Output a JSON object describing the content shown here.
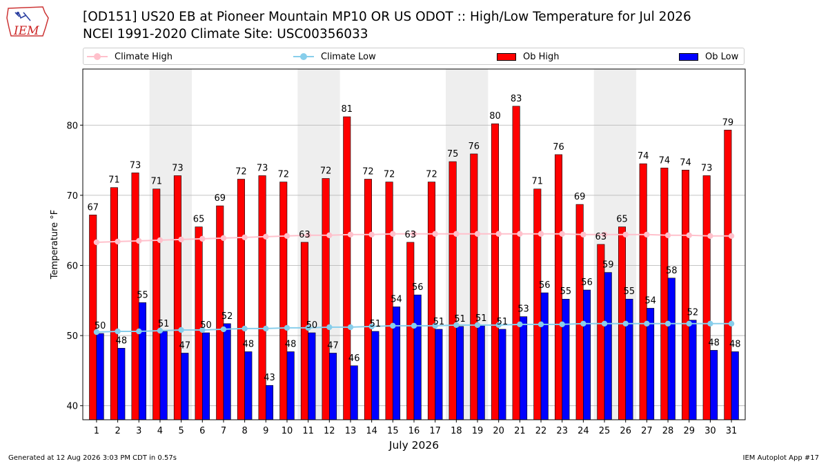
{
  "header": {
    "logo_text": "IEM",
    "title_line1": "[OD151] US20 EB at Pioneer Mountain MP10 OR US ODOT :: High/Low Temperature for Jul 2026",
    "title_line2": "NCEI 1991-2020 Climate Site: USC00356033"
  },
  "legend": {
    "climate_high": "Climate High",
    "climate_low": "Climate Low",
    "ob_high": "Ob High",
    "ob_low": "Ob Low"
  },
  "footer": {
    "generated": "Generated at 12 Aug 2026 3:03 PM CDT in 0.57s",
    "app": "IEM Autoplot App #17"
  },
  "colors": {
    "ob_high": "#ff0000",
    "ob_low": "#0000ff",
    "climate_high": "#ffc0cb",
    "climate_low": "#87ceeb",
    "weekend_shade": "#eeeeee",
    "grid": "#b0b0b0"
  },
  "chart_data": {
    "type": "bar",
    "xlabel": "July 2026",
    "ylabel": "Temperature °F",
    "ylim": [
      38,
      88
    ],
    "yticks": [
      40,
      50,
      60,
      70,
      80
    ],
    "grid": "horizontal",
    "legend_position": "top",
    "categories": [
      "1",
      "2",
      "3",
      "4",
      "5",
      "6",
      "7",
      "8",
      "9",
      "10",
      "11",
      "12",
      "13",
      "14",
      "15",
      "16",
      "17",
      "18",
      "19",
      "20",
      "21",
      "22",
      "23",
      "24",
      "25",
      "26",
      "27",
      "28",
      "29",
      "30",
      "31"
    ],
    "shaded_days": [
      [
        4,
        5
      ],
      [
        11,
        12
      ],
      [
        18,
        19
      ],
      [
        25,
        26
      ]
    ],
    "series": [
      {
        "name": "Ob High",
        "kind": "bar",
        "values": [
          67,
          71,
          73,
          71,
          73,
          65,
          69,
          72,
          73,
          72,
          63,
          72,
          81,
          72,
          72,
          63,
          72,
          75,
          76,
          80,
          83,
          71,
          76,
          69,
          63,
          65,
          74,
          74,
          74,
          73,
          79
        ],
        "heights": [
          67.2,
          71.1,
          73.2,
          70.9,
          72.8,
          65.5,
          68.5,
          72.3,
          72.8,
          71.9,
          63.3,
          72.4,
          81.2,
          72.3,
          71.9,
          63.3,
          71.9,
          74.8,
          75.9,
          80.2,
          82.7,
          70.9,
          75.8,
          68.7,
          63.0,
          65.5,
          74.5,
          73.9,
          73.6,
          72.8,
          79.3
        ],
        "labeled": [
          true,
          true,
          true,
          true,
          true,
          true,
          true,
          true,
          true,
          true,
          true,
          true,
          true,
          true,
          true,
          true,
          true,
          true,
          true,
          true,
          true,
          true,
          true,
          true,
          true,
          true,
          true,
          true,
          true,
          true,
          true
        ]
      },
      {
        "name": "Ob Low",
        "kind": "bar",
        "values": [
          50,
          48,
          55,
          51,
          47,
          50,
          52,
          48,
          43,
          48,
          50,
          47,
          46,
          51,
          54,
          56,
          51,
          51,
          51,
          51,
          53,
          56,
          55,
          56,
          59,
          55,
          54,
          58,
          52,
          48,
          48
        ],
        "heights": [
          50.3,
          48.2,
          54.7,
          50.6,
          47.5,
          50.4,
          51.7,
          47.7,
          42.9,
          47.7,
          50.4,
          47.5,
          45.7,
          50.6,
          54.1,
          55.8,
          50.9,
          51.3,
          51.4,
          50.9,
          52.7,
          56.1,
          55.2,
          56.5,
          59.0,
          55.2,
          53.9,
          58.2,
          52.2,
          47.9,
          47.7
        ],
        "labeled": [
          true,
          true,
          true,
          true,
          true,
          true,
          true,
          true,
          true,
          true,
          true,
          true,
          true,
          true,
          true,
          true,
          true,
          true,
          true,
          true,
          true,
          true,
          true,
          true,
          true,
          true,
          true,
          true,
          true,
          true,
          true
        ]
      },
      {
        "name": "Climate High",
        "kind": "line",
        "values": [
          63.3,
          63.4,
          63.5,
          63.6,
          63.7,
          63.8,
          63.9,
          64.0,
          64.1,
          64.2,
          64.3,
          64.3,
          64.4,
          64.4,
          64.5,
          64.5,
          64.5,
          64.5,
          64.5,
          64.5,
          64.5,
          64.5,
          64.5,
          64.4,
          64.4,
          64.4,
          64.4,
          64.3,
          64.3,
          64.2,
          64.2
        ]
      },
      {
        "name": "Climate Low",
        "kind": "line",
        "values": [
          50.5,
          50.6,
          50.6,
          50.7,
          50.8,
          50.8,
          50.9,
          51.0,
          51.0,
          51.1,
          51.1,
          51.2,
          51.2,
          51.3,
          51.4,
          51.4,
          51.4,
          51.5,
          51.5,
          51.5,
          51.6,
          51.6,
          51.6,
          51.7,
          51.7,
          51.7,
          51.7,
          51.7,
          51.7,
          51.7,
          51.7
        ]
      }
    ]
  }
}
